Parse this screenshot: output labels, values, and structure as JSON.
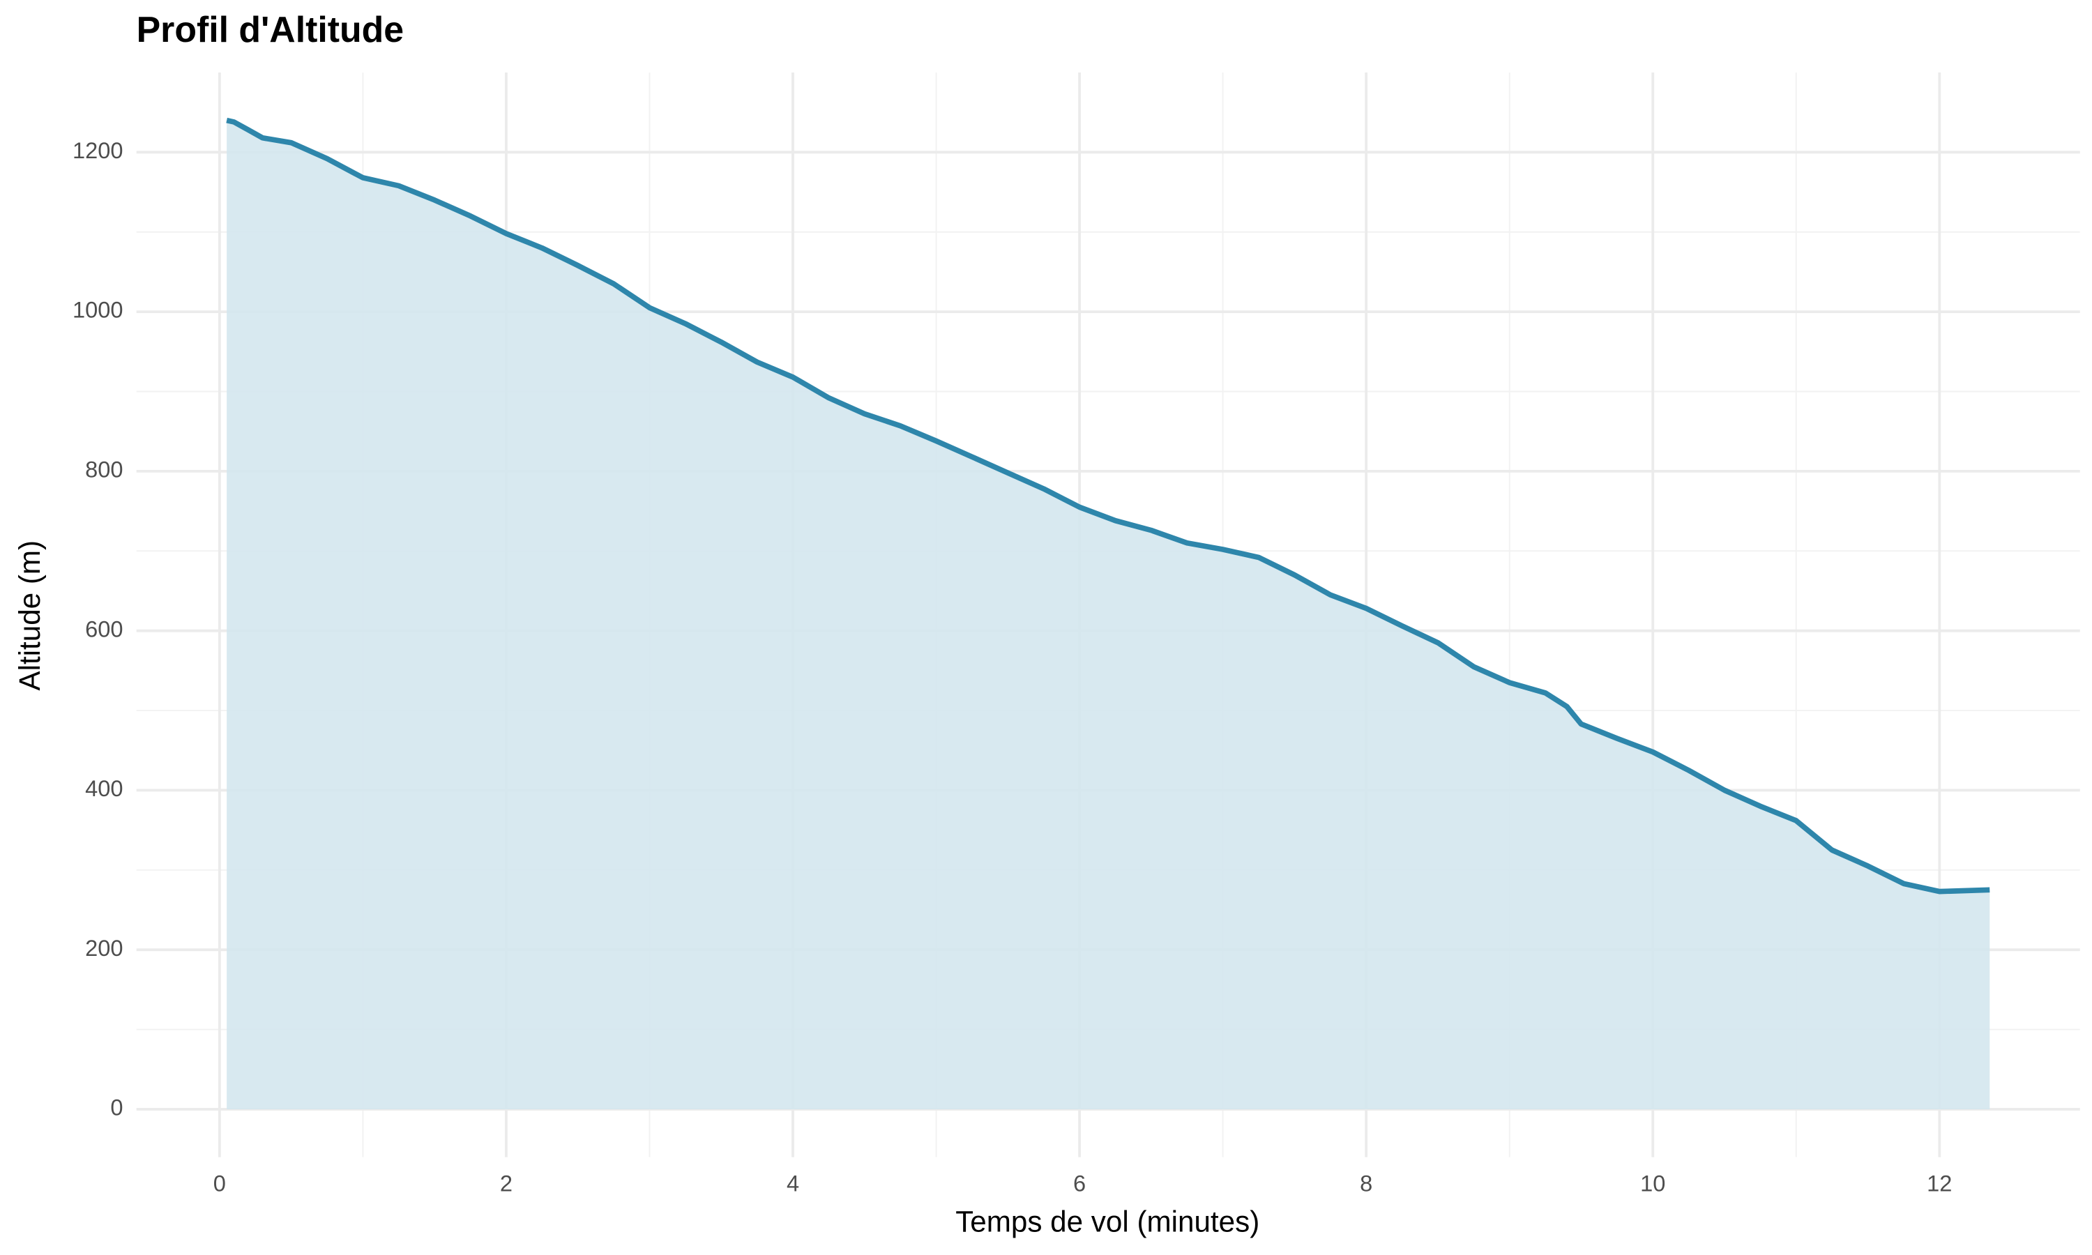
{
  "chart_data": {
    "type": "area",
    "title": "Profil d'Altitude",
    "x_label": "Temps de vol (minutes)",
    "y_label": "Altitude (m)",
    "x": [
      0.05,
      0.1,
      0.2,
      0.3,
      0.5,
      0.75,
      1.0,
      1.25,
      1.5,
      1.75,
      2.0,
      2.25,
      2.5,
      2.75,
      3.0,
      3.25,
      3.5,
      3.75,
      4.0,
      4.25,
      4.5,
      4.75,
      5.0,
      5.25,
      5.5,
      5.75,
      6.0,
      6.25,
      6.5,
      6.75,
      7.0,
      7.25,
      7.5,
      7.75,
      8.0,
      8.25,
      8.5,
      8.75,
      9.0,
      9.25,
      9.4,
      9.5,
      9.75,
      10.0,
      10.25,
      10.5,
      10.75,
      11.0,
      11.25,
      11.5,
      11.75,
      12.0,
      12.35
    ],
    "series": [
      {
        "name": "Altitude",
        "color": "#2e86ab",
        "fill": "#d4e7ee",
        "values": [
          1240,
          1238,
          1228,
          1218,
          1212,
          1192,
          1168,
          1158,
          1140,
          1120,
          1098,
          1080,
          1058,
          1035,
          1005,
          985,
          962,
          937,
          918,
          892,
          872,
          857,
          838,
          818,
          798,
          778,
          755,
          738,
          726,
          710,
          702,
          692,
          670,
          645,
          628,
          606,
          585,
          555,
          535,
          522,
          505,
          483,
          465,
          448,
          425,
          400,
          380,
          362,
          325,
          305,
          283,
          273,
          275
        ]
      }
    ],
    "xlim": [
      -0.58,
      12.98
    ],
    "ylim": [
      -60,
      1300
    ],
    "xticks": [
      0,
      2,
      4,
      6,
      8,
      10,
      12
    ],
    "yticks": [
      0,
      200,
      400,
      600,
      800,
      1000,
      1200
    ],
    "x_minor_ticks": [
      1,
      3,
      5,
      7,
      9,
      11
    ],
    "y_minor_ticks": [
      100,
      300,
      500,
      700,
      900,
      1100
    ],
    "grid": true
  }
}
